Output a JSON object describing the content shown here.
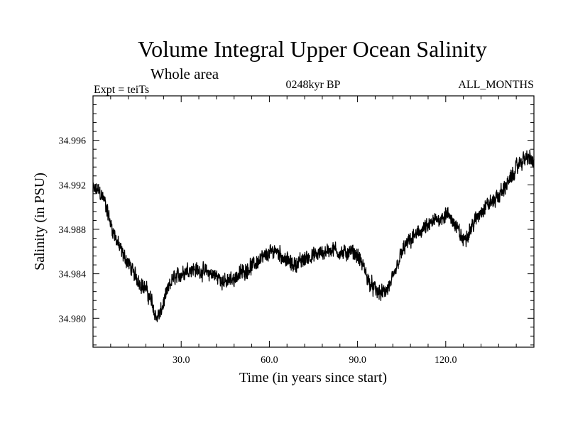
{
  "chart_data": {
    "type": "line",
    "title": "Volume Integral Upper Ocean Salinity",
    "subtitle": "Whole area",
    "experiment_label": "Expt = teiTs",
    "period_label": "0248kyr BP",
    "months_label": "ALL_MONTHS",
    "xlabel": "Time (in years since start)",
    "ylabel": "Salinity (in PSU)",
    "xlim": [
      0,
      150
    ],
    "ylim": [
      34.9774,
      35.0
    ],
    "x_ticks": [
      30,
      60,
      90,
      120
    ],
    "x_tick_labels": [
      "30.0",
      "60.0",
      "90.0",
      "120.0"
    ],
    "y_ticks": [
      34.98,
      34.984,
      34.988,
      34.992,
      34.996
    ],
    "y_tick_labels": [
      "34.980",
      "34.984",
      "34.988",
      "34.992",
      "34.996"
    ],
    "grid": false,
    "line_color": "#000000",
    "series": [
      {
        "name": "salinity",
        "x": [
          0,
          2,
          4,
          6,
          8,
          10,
          12,
          14,
          16,
          18,
          20,
          21.5,
          23,
          25,
          27,
          30,
          33,
          36,
          39,
          42,
          45,
          48,
          51,
          54,
          57,
          60,
          62,
          64,
          66,
          68,
          70,
          73,
          76,
          79,
          82,
          85,
          88,
          90,
          92,
          94,
          96,
          98,
          100,
          102,
          104,
          106,
          108,
          110,
          112,
          114,
          116,
          118,
          120,
          122,
          124,
          126,
          128,
          130,
          132,
          134,
          136,
          138,
          140,
          142,
          144,
          146,
          148,
          150
        ],
        "values": [
          34.9915,
          34.9915,
          34.9905,
          34.9885,
          34.987,
          34.9858,
          34.985,
          34.984,
          34.9832,
          34.9826,
          34.9815,
          34.98,
          34.9805,
          34.9822,
          34.9835,
          34.984,
          34.9845,
          34.9843,
          34.9841,
          34.9838,
          34.9832,
          34.9836,
          34.9842,
          34.9847,
          34.9853,
          34.9858,
          34.9862,
          34.9857,
          34.9852,
          34.9848,
          34.985,
          34.9855,
          34.9857,
          34.986,
          34.9862,
          34.9858,
          34.986,
          34.9856,
          34.9846,
          34.9832,
          34.9826,
          34.9822,
          34.9825,
          34.9835,
          34.9852,
          34.9864,
          34.987,
          34.9875,
          34.988,
          34.9882,
          34.9887,
          34.989,
          34.9893,
          34.989,
          34.988,
          34.987,
          34.9878,
          34.9888,
          34.9896,
          34.9902,
          34.9905,
          34.991,
          34.9918,
          34.9925,
          34.9935,
          34.9942,
          34.9945,
          34.994
        ]
      }
    ]
  }
}
